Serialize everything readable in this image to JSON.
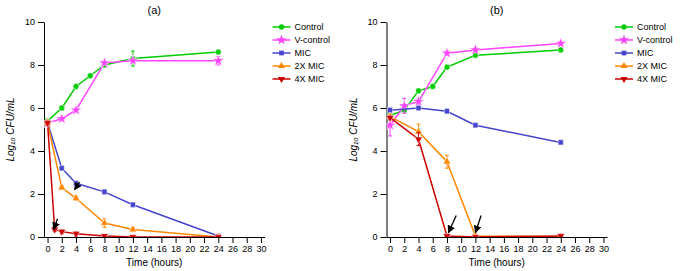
{
  "chart_data": [
    {
      "type": "line",
      "title": "(a)",
      "x_label": "Time (hours)",
      "y_label": "Log₁₀ CFU/mL",
      "xlim": [
        -0.5,
        30.5
      ],
      "ylim": [
        0,
        10
      ],
      "xticks": [
        0,
        2,
        4,
        6,
        8,
        10,
        12,
        14,
        16,
        18,
        20,
        22,
        24,
        26,
        28,
        30
      ],
      "yticks": [
        0,
        2,
        4,
        6,
        8,
        10
      ],
      "legend": "right",
      "series": [
        {
          "name": "Control",
          "color": "#00cc00",
          "marker": "circle",
          "x": [
            0,
            2,
            4,
            6,
            8,
            12,
            24
          ],
          "values": [
            5.4,
            6.0,
            7.0,
            7.5,
            8.0,
            8.3,
            8.6
          ],
          "errors": [
            0.1,
            0.1,
            0.1,
            0.1,
            0.1,
            0.35,
            0.1
          ]
        },
        {
          "name": "V-control",
          "color": "#ff44ff",
          "marker": "star",
          "x": [
            0,
            2,
            4,
            8,
            12,
            24
          ],
          "values": [
            5.3,
            5.5,
            5.9,
            8.1,
            8.2,
            8.2
          ],
          "errors": [
            0.05,
            0.05,
            0.05,
            0.05,
            0.05,
            0.2
          ]
        },
        {
          "name": "MIC",
          "color": "#4444cc",
          "marker": "square",
          "x": [
            0,
            2,
            4,
            8,
            12,
            24
          ],
          "values": [
            5.3,
            3.2,
            2.5,
            2.1,
            1.5,
            0.05
          ],
          "errors": [
            0.1,
            0.1,
            0.1,
            0.1,
            0.1,
            0.05
          ]
        },
        {
          "name": "2X MIC",
          "color": "#ff8800",
          "marker": "triangle-up",
          "x": [
            0,
            2,
            4,
            8,
            12,
            24
          ],
          "values": [
            5.3,
            2.3,
            1.8,
            0.65,
            0.35,
            0.0
          ],
          "errors": [
            0.1,
            0.1,
            0.1,
            0.2,
            0.1,
            0.0
          ]
        },
        {
          "name": "4X MIC",
          "color": "#cc0000",
          "marker": "triangle-down",
          "x": [
            0,
            1,
            2,
            4,
            8,
            12,
            24
          ],
          "values": [
            5.3,
            0.35,
            0.25,
            0.15,
            0.05,
            0.0,
            0.0
          ],
          "errors": [
            0.1,
            0.1,
            0.1,
            0.1,
            0.05,
            0.0,
            0.0
          ]
        }
      ],
      "annotations": [
        {
          "x": 0.85,
          "y": 0.35,
          "x_tail": 1.4,
          "y_tail": 0.85
        },
        {
          "x": 3.8,
          "y": 2.2,
          "x_tail": 4.5,
          "y_tail": 2.55
        }
      ]
    },
    {
      "type": "line",
      "title": "(b)",
      "x_label": "Time (hours)",
      "y_label": "Log₁₀ CFU/mL",
      "xlim": [
        -0.5,
        30.5
      ],
      "ylim": [
        0,
        10
      ],
      "xticks": [
        0,
        2,
        4,
        6,
        8,
        10,
        12,
        14,
        16,
        18,
        20,
        22,
        24,
        26,
        28,
        30
      ],
      "yticks": [
        0,
        2,
        4,
        6,
        8,
        10
      ],
      "legend": "right",
      "series": [
        {
          "name": "Control",
          "color": "#00cc00",
          "marker": "circle",
          "x": [
            0,
            2,
            4,
            6,
            8,
            12,
            24
          ],
          "values": [
            5.65,
            5.9,
            6.8,
            7.0,
            7.9,
            8.45,
            8.7
          ],
          "errors": [
            0.1,
            0.1,
            0.1,
            0.1,
            0.1,
            0.1,
            0.1
          ]
        },
        {
          "name": "V-control",
          "color": "#ff44ff",
          "marker": "star",
          "x": [
            0,
            2,
            4,
            8,
            12,
            24
          ],
          "values": [
            5.2,
            6.1,
            6.3,
            8.55,
            8.7,
            9.0
          ],
          "errors": [
            0.5,
            0.35,
            0.15,
            0.1,
            0.1,
            0.1
          ]
        },
        {
          "name": "MIC",
          "color": "#4444cc",
          "marker": "square",
          "x": [
            0,
            4,
            8,
            12,
            24
          ],
          "values": [
            5.9,
            6.0,
            5.85,
            5.2,
            4.4
          ],
          "errors": [
            0.1,
            0.1,
            0.1,
            0.1,
            0.1
          ]
        },
        {
          "name": "2X MIC",
          "color": "#ff8800",
          "marker": "triangle-up",
          "x": [
            0,
            4,
            8,
            12,
            24
          ],
          "values": [
            5.6,
            4.9,
            3.5,
            0.05,
            0.0
          ],
          "errors": [
            0.1,
            0.35,
            0.3,
            0.05,
            0.0
          ]
        },
        {
          "name": "4X MIC",
          "color": "#cc0000",
          "marker": "triangle-down",
          "x": [
            0,
            4,
            8,
            12,
            24
          ],
          "values": [
            5.55,
            4.55,
            0.05,
            0.0,
            0.05
          ],
          "errors": [
            0.1,
            0.3,
            0.05,
            0.0,
            0.05
          ]
        }
      ],
      "annotations": [
        {
          "x": 8.2,
          "y": 0.2,
          "x_tail": 9.3,
          "y_tail": 1.0
        },
        {
          "x": 12.0,
          "y": 0.2,
          "x_tail": 12.8,
          "y_tail": 1.0
        }
      ]
    }
  ]
}
